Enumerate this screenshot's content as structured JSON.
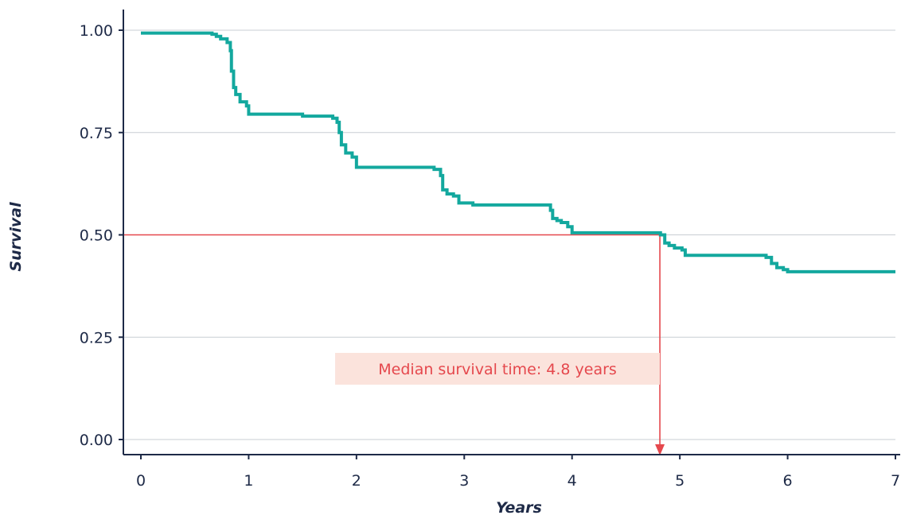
{
  "chart_data": {
    "type": "line",
    "xlabel": "Years",
    "ylabel": "Survival",
    "xlim": [
      0,
      7
    ],
    "ylim": [
      0,
      1
    ],
    "x_ticks": [
      0,
      1,
      2,
      3,
      4,
      5,
      6,
      7
    ],
    "x_tick_labels": [
      "0",
      "1",
      "2",
      "3",
      "4",
      "5",
      "6",
      "7"
    ],
    "y_ticks": [
      0,
      0.25,
      0.5,
      0.75,
      1
    ],
    "y_tick_labels": [
      "0.00",
      "0.25",
      "0.50",
      "0.75",
      "1.00"
    ],
    "grid": "horizontal",
    "series": [
      {
        "step": true,
        "color": "#13a89e",
        "points": [
          [
            0,
            0.993
          ],
          [
            0.62,
            0.993
          ],
          [
            0.66,
            0.99
          ],
          [
            0.7,
            0.985
          ],
          [
            0.74,
            0.979
          ],
          [
            0.8,
            0.97
          ],
          [
            0.83,
            0.95
          ],
          [
            0.84,
            0.9
          ],
          [
            0.86,
            0.86
          ],
          [
            0.88,
            0.843
          ],
          [
            0.92,
            0.825
          ],
          [
            0.98,
            0.815
          ],
          [
            1.0,
            0.795
          ],
          [
            1.5,
            0.79
          ],
          [
            1.78,
            0.785
          ],
          [
            1.82,
            0.775
          ],
          [
            1.84,
            0.75
          ],
          [
            1.86,
            0.72
          ],
          [
            1.9,
            0.7
          ],
          [
            1.96,
            0.69
          ],
          [
            2.0,
            0.665
          ],
          [
            2.72,
            0.66
          ],
          [
            2.78,
            0.645
          ],
          [
            2.8,
            0.61
          ],
          [
            2.84,
            0.6
          ],
          [
            2.9,
            0.595
          ],
          [
            2.95,
            0.578
          ],
          [
            3.08,
            0.573
          ],
          [
            3.8,
            0.56
          ],
          [
            3.82,
            0.54
          ],
          [
            3.86,
            0.535
          ],
          [
            3.9,
            0.53
          ],
          [
            3.96,
            0.52
          ],
          [
            4.0,
            0.505
          ],
          [
            4.82,
            0.5
          ],
          [
            4.86,
            0.48
          ],
          [
            4.9,
            0.474
          ],
          [
            4.95,
            0.468
          ],
          [
            5.02,
            0.463
          ],
          [
            5.05,
            0.45
          ],
          [
            5.8,
            0.445
          ],
          [
            5.85,
            0.43
          ],
          [
            5.9,
            0.42
          ],
          [
            5.96,
            0.415
          ],
          [
            6.0,
            0.41
          ],
          [
            7.0,
            0.41
          ]
        ]
      }
    ],
    "median": {
      "survival": 0.5,
      "time": 4.8,
      "label": "Median survival time: 4.8 years",
      "color": "#e5484d",
      "label_bg": "#fbe3dc"
    }
  }
}
